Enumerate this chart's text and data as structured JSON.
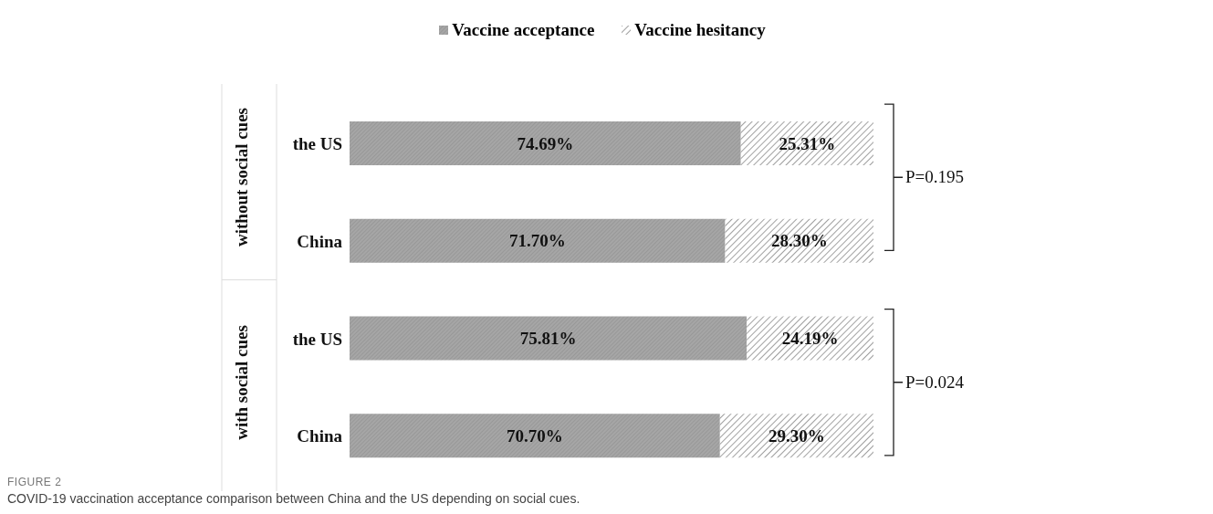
{
  "chart_data": {
    "type": "bar",
    "orientation": "horizontal",
    "stacked": true,
    "categories": [
      "the US",
      "China",
      "the US",
      "China"
    ],
    "series": [
      {
        "name": "Vaccine acceptance",
        "color": "#a6a6a6",
        "values": [
          74.69,
          71.7,
          75.81,
          70.7
        ],
        "value_labels": [
          "74.69%",
          "71.70%",
          "75.81%",
          "70.70%"
        ]
      },
      {
        "name": "Vaccine hesitancy",
        "color": "#7f7f7f",
        "values": [
          25.31,
          28.3,
          24.19,
          29.3
        ],
        "value_labels": [
          "25.31%",
          "28.30%",
          "24.19%",
          "29.30%"
        ]
      }
    ],
    "xlim": [
      0,
      100
    ],
    "tick_labels": "y",
    "legend": "top",
    "grid": false,
    "annotations": [
      "without social cues",
      "with social cues",
      "P=0.195",
      "P=0.024",
      "FIGURE 2",
      "COVID-19 vaccination acceptance comparison between China and the US depending on social cues."
    ]
  }
}
